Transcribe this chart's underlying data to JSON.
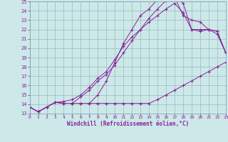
{
  "xlabel": "Windchill (Refroidissement éolien,°C)",
  "bg_color": "#cce8e8",
  "grid_color": "#99bbbb",
  "line_color": "#882299",
  "xmin": 0,
  "xmax": 23,
  "ymin": 13,
  "ymax": 25,
  "lines": [
    {
      "x": [
        0,
        1,
        2,
        3,
        4,
        5,
        6,
        7,
        8,
        9,
        10,
        11,
        12,
        13,
        14,
        15,
        16,
        17,
        18,
        19,
        20,
        21,
        22,
        23
      ],
      "y": [
        13.7,
        13.2,
        13.7,
        14.2,
        14.1,
        14.1,
        14.1,
        14.1,
        14.1,
        14.1,
        14.1,
        14.1,
        14.1,
        14.1,
        14.1,
        14.5,
        15.0,
        15.5,
        16.0,
        16.5,
        17.0,
        17.5,
        18.0,
        18.5
      ]
    },
    {
      "x": [
        0,
        1,
        2,
        3,
        4,
        5,
        6,
        7,
        8,
        9,
        10,
        11,
        12,
        13,
        14,
        15,
        16,
        17,
        18,
        19,
        20,
        21,
        22,
        23
      ],
      "y": [
        13.7,
        13.2,
        13.7,
        14.2,
        14.1,
        14.1,
        14.8,
        15.5,
        16.5,
        17.2,
        18.2,
        19.5,
        20.8,
        22.0,
        23.2,
        24.2,
        25.1,
        25.5,
        23.5,
        23.0,
        22.8,
        22.0,
        21.8,
        19.5
      ]
    },
    {
      "x": [
        0,
        1,
        2,
        3,
        4,
        5,
        6,
        7,
        8,
        9,
        10,
        11,
        12,
        13,
        14,
        15,
        16,
        17,
        18,
        19,
        20,
        21,
        22,
        23
      ],
      "y": [
        13.7,
        13.2,
        13.7,
        14.2,
        14.1,
        14.1,
        14.1,
        14.1,
        15.0,
        16.5,
        18.5,
        20.5,
        22.0,
        23.5,
        24.2,
        25.2,
        25.5,
        25.5,
        24.8,
        22.0,
        22.0,
        22.0,
        21.5,
        19.5
      ]
    },
    {
      "x": [
        0,
        1,
        2,
        3,
        4,
        5,
        6,
        7,
        8,
        9,
        10,
        11,
        12,
        13,
        14,
        15,
        16,
        17,
        18,
        19,
        20,
        21,
        22,
        23
      ],
      "y": [
        13.7,
        13.2,
        13.7,
        14.2,
        14.3,
        14.5,
        15.0,
        15.8,
        16.8,
        17.5,
        18.8,
        20.2,
        21.2,
        22.0,
        22.8,
        23.5,
        24.2,
        24.8,
        23.8,
        22.0,
        21.8,
        22.0,
        21.8,
        19.5
      ]
    }
  ]
}
